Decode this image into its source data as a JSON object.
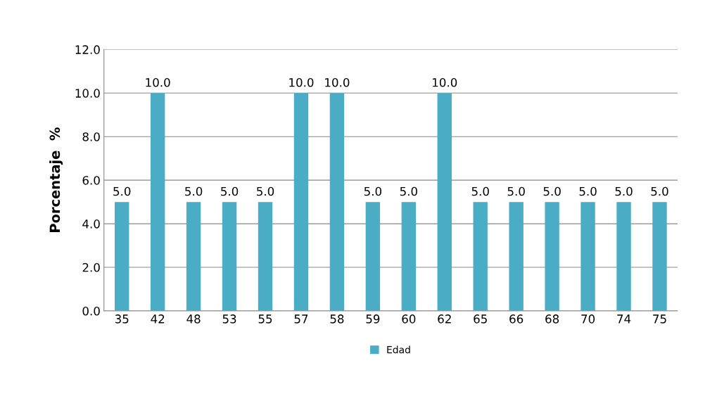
{
  "chart_data": {
    "type": "bar",
    "ylabel": "Porcentaje  %",
    "categories": [
      "35",
      "42",
      "48",
      "53",
      "55",
      "57",
      "58",
      "59",
      "60",
      "62",
      "65",
      "66",
      "68",
      "70",
      "74",
      "75"
    ],
    "series": [
      {
        "name": "Edad",
        "color": "#4bacc6",
        "values": [
          5.0,
          10.0,
          5.0,
          5.0,
          5.0,
          10.0,
          10.0,
          5.0,
          5.0,
          10.0,
          5.0,
          5.0,
          5.0,
          5.0,
          5.0,
          5.0
        ]
      }
    ],
    "value_labels": [
      "5.0",
      "10.0",
      "5.0",
      "5.0",
      "5.0",
      "10.0",
      "10.0",
      "5.0",
      "5.0",
      "10.0",
      "5.0",
      "5.0",
      "5.0",
      "5.0",
      "5.0",
      "5.0"
    ],
    "ylim": [
      0,
      12
    ],
    "yticks": [
      {
        "value": 0,
        "label": "0.0"
      },
      {
        "value": 2,
        "label": "2.0"
      },
      {
        "value": 4,
        "label": "4.0"
      },
      {
        "value": 6,
        "label": "6.0"
      },
      {
        "value": 8,
        "label": "8.0"
      },
      {
        "value": 10,
        "label": "10.0"
      },
      {
        "value": 12,
        "label": "12.0"
      }
    ],
    "grid": "y",
    "legend": "bottom"
  }
}
